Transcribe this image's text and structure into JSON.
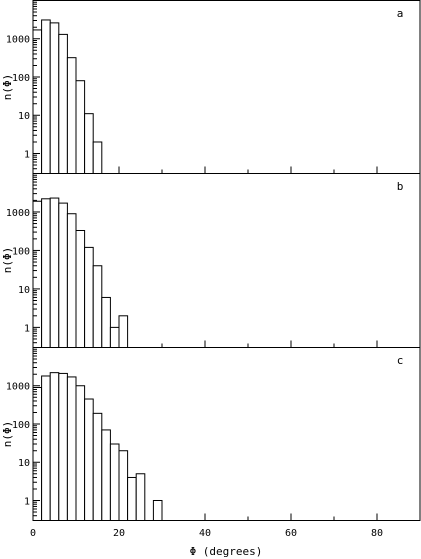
{
  "chart_data": [
    {
      "type": "bar",
      "panel_label": "a",
      "ylabel": "n(Φ)",
      "yscale": "log",
      "ylim": [
        0.3,
        10000
      ],
      "yticks": [
        1,
        10,
        100,
        1000
      ],
      "ytick_labels": [
        "1",
        "10",
        "100",
        "1000"
      ],
      "xlim": [
        0,
        90
      ],
      "bin_width": 2,
      "bins_x": [
        0,
        2,
        4,
        6,
        8,
        10,
        12,
        14
      ],
      "values": [
        1700,
        3100,
        2600,
        1300,
        320,
        80,
        11,
        2
      ]
    },
    {
      "type": "bar",
      "panel_label": "b",
      "ylabel": "n(Φ)",
      "yscale": "log",
      "ylim": [
        0.3,
        10000
      ],
      "yticks": [
        1,
        10,
        100,
        1000
      ],
      "ytick_labels": [
        "1",
        "10",
        "100",
        "1000"
      ],
      "xlim": [
        0,
        90
      ],
      "bin_width": 2,
      "bins_x": [
        0,
        2,
        4,
        6,
        8,
        10,
        12,
        14,
        16,
        18,
        20
      ],
      "values": [
        1900,
        2200,
        2300,
        1700,
        900,
        330,
        120,
        40,
        6,
        1,
        2
      ]
    },
    {
      "type": "bar",
      "panel_label": "c",
      "ylabel": "n(Φ)",
      "xlabel": "Φ (degrees)",
      "yscale": "log",
      "ylim": [
        0.3,
        10000
      ],
      "yticks": [
        1,
        10,
        100,
        1000
      ],
      "ytick_labels": [
        "1",
        "10",
        "100",
        "1000"
      ],
      "xlim": [
        0,
        90
      ],
      "xticks": [
        0,
        20,
        40,
        60,
        80
      ],
      "xtick_labels": [
        "0",
        "20",
        "40",
        "60",
        "80"
      ],
      "bin_width": 2,
      "bins_x": [
        0,
        2,
        4,
        6,
        8,
        10,
        12,
        14,
        16,
        18,
        20,
        22,
        24,
        26,
        28
      ],
      "values": [
        900,
        1800,
        2200,
        2100,
        1700,
        1000,
        450,
        190,
        70,
        30,
        20,
        4,
        5,
        0,
        1
      ]
    }
  ]
}
